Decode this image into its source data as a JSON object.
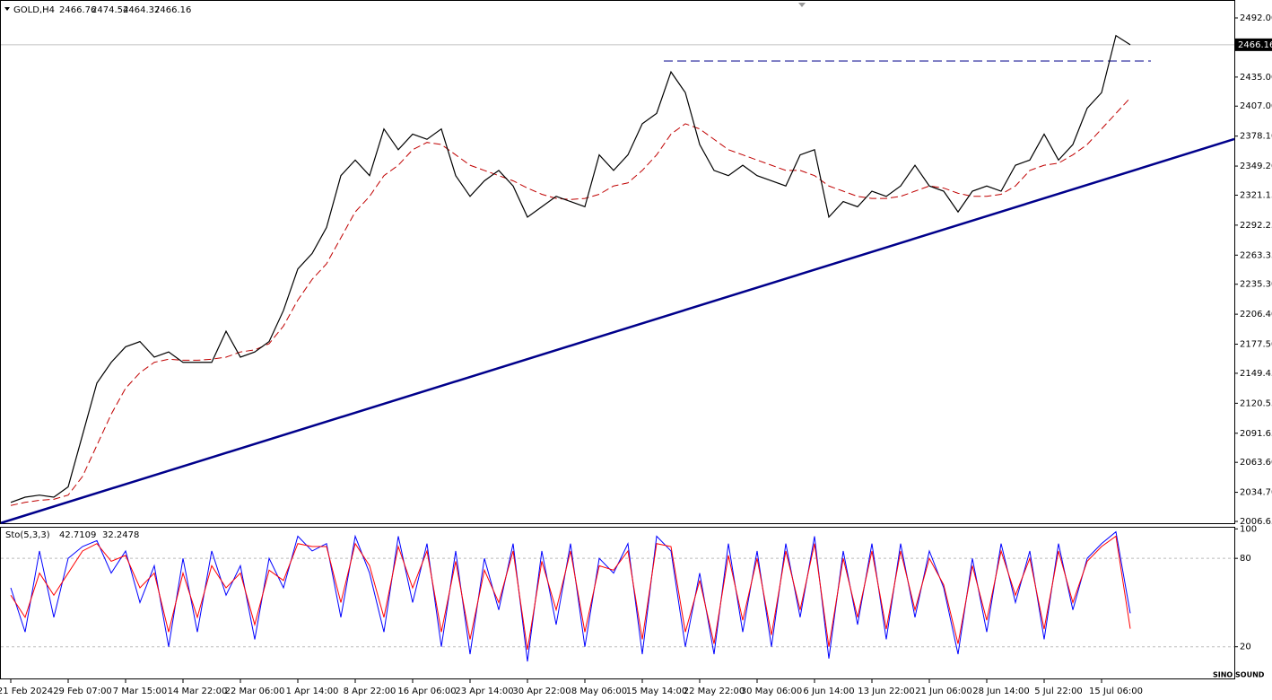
{
  "chart_data": {
    "type": "line",
    "symbol": "GOLD,H4",
    "ohlc": [
      2466.76,
      2474.54,
      2464.37,
      2466.16
    ],
    "categories": [
      null,
      "21 Feb 2024",
      null,
      null,
      null,
      "29 Feb 07:00",
      null,
      null,
      null,
      "7 Mar 15:00",
      null,
      null,
      null,
      "14 Mar 22:00",
      null,
      null,
      null,
      "22 Mar 06:00",
      null,
      null,
      null,
      "1 Apr 14:00",
      null,
      null,
      null,
      "8 Apr 22:00",
      null,
      null,
      null,
      "16 Apr 06:00",
      null,
      null,
      null,
      "23 Apr 14:00",
      null,
      null,
      null,
      "30 Apr 22:00",
      null,
      null,
      null,
      "8 May 06:00",
      null,
      null,
      null,
      "15 May 14:00",
      null,
      null,
      null,
      "22 May 22:00",
      null,
      null,
      null,
      "30 May 06:00",
      null,
      null,
      null,
      "6 Jun 14:00",
      null,
      null,
      null,
      "13 Jun 22:00",
      null,
      null,
      null,
      "21 Jun 06:00",
      null,
      null,
      null,
      "28 Jun 14:00",
      null,
      null,
      null,
      "5 Jul 22:00",
      null,
      null,
      null,
      "15 Jul 06:00",
      null
    ],
    "series": [
      {
        "name": "GOLD,H4",
        "color": "#000000",
        "values": [
          2025,
          2030,
          2032,
          2030,
          2040,
          2090,
          2140,
          2160,
          2175,
          2180,
          2165,
          2170,
          2160,
          2160,
          2160,
          2190,
          2165,
          2170,
          2180,
          2210,
          2250,
          2265,
          2290,
          2340,
          2355,
          2340,
          2385,
          2365,
          2380,
          2375,
          2385,
          2340,
          2320,
          2335,
          2345,
          2330,
          2300,
          2310,
          2320,
          2315,
          2310,
          2360,
          2345,
          2360,
          2390,
          2400,
          2440,
          2420,
          2370,
          2345,
          2340,
          2350,
          2340,
          2335,
          2330,
          2360,
          2365,
          2300,
          2315,
          2310,
          2325,
          2320,
          2330,
          2350,
          2330,
          2325,
          2305,
          2325,
          2330,
          2325,
          2350,
          2355,
          2380,
          2355,
          2370,
          2405,
          2420,
          2475,
          2466.16
        ]
      },
      {
        "name": "MA",
        "color": "#c00000",
        "values": [
          2022,
          2025,
          2027,
          2028,
          2032,
          2050,
          2080,
          2110,
          2135,
          2150,
          2160,
          2163,
          2162,
          2162,
          2163,
          2165,
          2170,
          2172,
          2178,
          2195,
          2220,
          2240,
          2255,
          2280,
          2305,
          2320,
          2340,
          2350,
          2365,
          2372,
          2370,
          2360,
          2350,
          2345,
          2340,
          2335,
          2328,
          2322,
          2318,
          2317,
          2318,
          2322,
          2330,
          2333,
          2345,
          2360,
          2380,
          2390,
          2385,
          2375,
          2365,
          2360,
          2355,
          2350,
          2345,
          2345,
          2340,
          2330,
          2325,
          2320,
          2318,
          2318,
          2320,
          2325,
          2330,
          2328,
          2323,
          2320,
          2320,
          2322,
          2330,
          2345,
          2350,
          2352,
          2360,
          2370,
          2385,
          2400,
          2415
        ]
      }
    ],
    "trendline": [
      2008.1,
      2344.0
    ],
    "resistance": 2450.5,
    "current_price": 2466.16,
    "ylim": [
      2004.92,
      2509.3
    ],
    "yticks": [
      {
        "value": 2492,
        "label": "2492.00"
      },
      {
        "value": 2435,
        "label": "2435.00"
      },
      {
        "value": 2407,
        "label": "2407.00"
      },
      {
        "value": 2378.1,
        "label": "2378.10"
      },
      {
        "value": 2349.2,
        "label": "2349.20"
      },
      {
        "value": 2321.15,
        "label": "2321.15"
      },
      {
        "value": 2292.25,
        "label": "2292.25"
      },
      {
        "value": 2263.35,
        "label": "2263.35"
      },
      {
        "value": 2235.3,
        "label": "2235.30"
      },
      {
        "value": 2206.4,
        "label": "2206.40"
      },
      {
        "value": 2177.5,
        "label": "2177.50"
      },
      {
        "value": 2149.45,
        "label": "2149.45"
      },
      {
        "value": 2120.55,
        "label": "2120.55"
      },
      {
        "value": 2091.65,
        "label": "2091.65"
      },
      {
        "value": 2063.6,
        "label": "2063.60"
      },
      {
        "value": 2034.7,
        "label": "2034.70"
      },
      {
        "value": 2006.65,
        "label": "2006.65"
      }
    ],
    "stochastic": {
      "title": "Sto(5,3,3)",
      "series": [
        {
          "name": "Main",
          "color": "#0000ff",
          "values": [
            60,
            30,
            85,
            40,
            80,
            88,
            92,
            70,
            85,
            50,
            75,
            20,
            80,
            30,
            85,
            55,
            75,
            25,
            80,
            60,
            95,
            85,
            90,
            40,
            95,
            70,
            30,
            95,
            50,
            90,
            20,
            85,
            15,
            80,
            45,
            90,
            10,
            85,
            35,
            90,
            20,
            80,
            70,
            90,
            15,
            95,
            85,
            20,
            70,
            15,
            90,
            30,
            85,
            20,
            90,
            40,
            95,
            12,
            85,
            35,
            90,
            25,
            90,
            40,
            85,
            60,
            15,
            80,
            30,
            90,
            50,
            85,
            25,
            90,
            45,
            80,
            90,
            98,
            42.7109
          ]
        },
        {
          "name": "Signal",
          "color": "#ff0000",
          "values": [
            55,
            40,
            70,
            55,
            70,
            85,
            90,
            78,
            82,
            60,
            70,
            30,
            70,
            40,
            75,
            60,
            70,
            35,
            72,
            65,
            90,
            88,
            88,
            50,
            90,
            75,
            40,
            88,
            60,
            85,
            30,
            78,
            25,
            72,
            50,
            85,
            18,
            78,
            45,
            85,
            30,
            75,
            72,
            85,
            25,
            90,
            88,
            30,
            65,
            22,
            82,
            38,
            80,
            28,
            85,
            45,
            90,
            20,
            80,
            40,
            85,
            32,
            85,
            45,
            80,
            62,
            22,
            75,
            38,
            85,
            55,
            80,
            32,
            85,
            50,
            78,
            88,
            95,
            32.2478
          ]
        }
      ],
      "ylim": [
        -1.5,
        100.8
      ],
      "yticks": [
        20,
        80,
        100
      ],
      "levels": [
        20,
        80
      ]
    },
    "watermark": "SINO SOUND"
  }
}
